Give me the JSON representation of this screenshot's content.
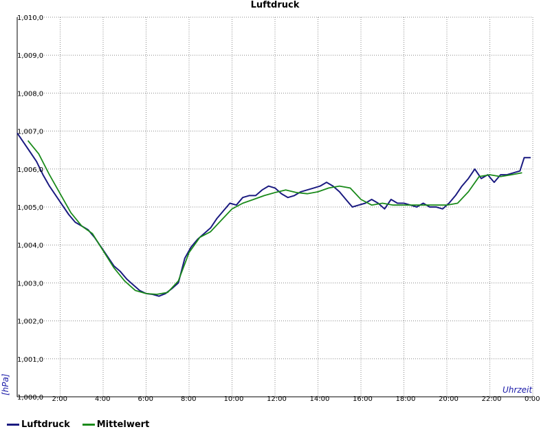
{
  "chart_data": {
    "type": "line",
    "title": "Luftdruck",
    "xlabel": "Uhrzeit",
    "ylabel": "[hPa]",
    "xlim": [
      0,
      24
    ],
    "ylim": [
      1000,
      1010
    ],
    "grid": true,
    "legend_position": "bottom-left",
    "x_ticks": [
      {
        "value": 2,
        "label": "2:00"
      },
      {
        "value": 4,
        "label": "4:00"
      },
      {
        "value": 6,
        "label": "6:00"
      },
      {
        "value": 8,
        "label": "8:00"
      },
      {
        "value": 10,
        "label": "10:00"
      },
      {
        "value": 12,
        "label": "12:00"
      },
      {
        "value": 14,
        "label": "14:00"
      },
      {
        "value": 16,
        "label": "16:00"
      },
      {
        "value": 18,
        "label": "18:00"
      },
      {
        "value": 20,
        "label": "20:00"
      },
      {
        "value": 22,
        "label": "22:00"
      },
      {
        "value": 24,
        "label": "0:00"
      }
    ],
    "y_ticks": [
      {
        "value": 1000,
        "label": "1,000,0"
      },
      {
        "value": 1001,
        "label": "1,001,0"
      },
      {
        "value": 1002,
        "label": "1,002,0"
      },
      {
        "value": 1003,
        "label": "1,003,0"
      },
      {
        "value": 1004,
        "label": "1,004,0"
      },
      {
        "value": 1005,
        "label": "1,005,0"
      },
      {
        "value": 1006,
        "label": "1,006,0"
      },
      {
        "value": 1007,
        "label": "1,007,0"
      },
      {
        "value": 1008,
        "label": "1,008,0"
      },
      {
        "value": 1009,
        "label": "1,009,0"
      },
      {
        "value": 1010,
        "label": "1,010,0"
      }
    ],
    "series": [
      {
        "name": "Luftdruck",
        "color": "#1a1a80",
        "x": [
          0,
          0.3,
          0.6,
          0.9,
          1.2,
          1.5,
          1.8,
          2.1,
          2.4,
          2.7,
          3.0,
          3.3,
          3.6,
          3.9,
          4.2,
          4.5,
          4.8,
          5.1,
          5.4,
          5.7,
          6.0,
          6.3,
          6.6,
          6.9,
          7.2,
          7.5,
          7.8,
          8.1,
          8.4,
          8.7,
          9.0,
          9.3,
          9.6,
          9.9,
          10.2,
          10.5,
          10.8,
          11.1,
          11.4,
          11.7,
          12.0,
          12.3,
          12.6,
          12.9,
          13.2,
          13.5,
          13.8,
          14.1,
          14.4,
          14.7,
          15.0,
          15.3,
          15.6,
          15.9,
          16.2,
          16.5,
          16.8,
          17.1,
          17.4,
          17.7,
          18.0,
          18.3,
          18.6,
          18.9,
          19.2,
          19.5,
          19.8,
          20.1,
          20.4,
          20.7,
          21.0,
          21.3,
          21.6,
          21.9,
          22.2,
          22.5,
          22.8,
          23.1,
          23.4,
          23.6,
          23.9
        ],
        "values": [
          1006.95,
          1006.7,
          1006.45,
          1006.2,
          1005.85,
          1005.55,
          1005.3,
          1005.05,
          1004.8,
          1004.6,
          1004.5,
          1004.4,
          1004.2,
          1003.95,
          1003.7,
          1003.45,
          1003.3,
          1003.1,
          1002.95,
          1002.8,
          1002.72,
          1002.7,
          1002.65,
          1002.72,
          1002.85,
          1003.0,
          1003.65,
          1003.95,
          1004.15,
          1004.3,
          1004.45,
          1004.7,
          1004.9,
          1005.1,
          1005.05,
          1005.25,
          1005.3,
          1005.3,
          1005.45,
          1005.55,
          1005.5,
          1005.35,
          1005.25,
          1005.3,
          1005.4,
          1005.45,
          1005.5,
          1005.55,
          1005.65,
          1005.55,
          1005.4,
          1005.2,
          1005.0,
          1005.05,
          1005.1,
          1005.2,
          1005.1,
          1004.95,
          1005.2,
          1005.1,
          1005.1,
          1005.05,
          1005.0,
          1005.1,
          1005.0,
          1005.0,
          1004.95,
          1005.1,
          1005.3,
          1005.55,
          1005.75,
          1006.0,
          1005.75,
          1005.85,
          1005.65,
          1005.85,
          1005.85,
          1005.9,
          1005.95,
          1006.3,
          1006.3
        ]
      },
      {
        "name": "Mittelwert",
        "color": "#1a8a1a",
        "x": [
          0.5,
          1.0,
          1.5,
          2.0,
          2.5,
          3.0,
          3.5,
          4.0,
          4.5,
          5.0,
          5.5,
          6.0,
          6.5,
          7.0,
          7.5,
          8.0,
          8.5,
          9.0,
          9.5,
          10.0,
          10.5,
          11.0,
          11.5,
          12.0,
          12.5,
          13.0,
          13.5,
          14.0,
          14.5,
          15.0,
          15.5,
          16.0,
          16.5,
          17.0,
          17.5,
          18.0,
          18.5,
          19.0,
          19.5,
          20.0,
          20.5,
          21.0,
          21.5,
          22.0,
          22.5,
          23.0,
          23.5
        ],
        "values": [
          1006.75,
          1006.4,
          1005.85,
          1005.35,
          1004.85,
          1004.5,
          1004.3,
          1003.85,
          1003.4,
          1003.05,
          1002.8,
          1002.72,
          1002.7,
          1002.75,
          1003.05,
          1003.8,
          1004.2,
          1004.35,
          1004.65,
          1004.95,
          1005.1,
          1005.2,
          1005.3,
          1005.38,
          1005.45,
          1005.38,
          1005.35,
          1005.4,
          1005.5,
          1005.55,
          1005.5,
          1005.2,
          1005.05,
          1005.1,
          1005.05,
          1005.05,
          1005.05,
          1005.05,
          1005.05,
          1005.05,
          1005.1,
          1005.4,
          1005.8,
          1005.85,
          1005.8,
          1005.85,
          1005.9
        ]
      }
    ]
  }
}
